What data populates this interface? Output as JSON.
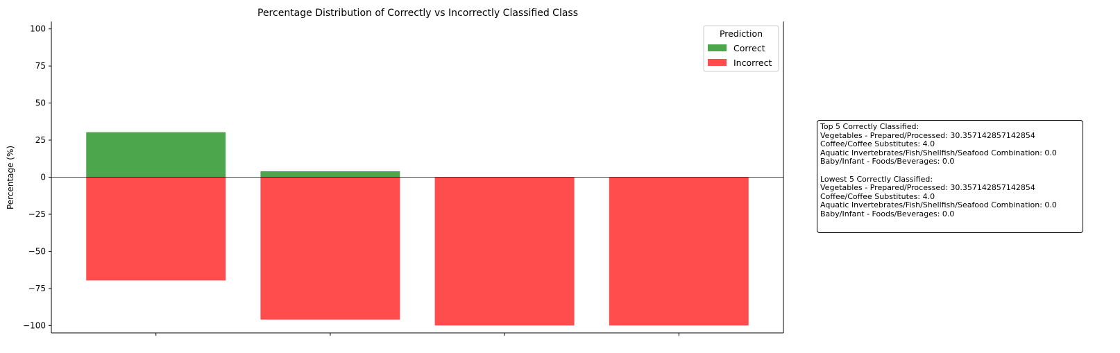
{
  "chart_data": {
    "type": "bar",
    "title": "Percentage Distribution of Correctly vs Incorrectly Classified Class",
    "xlabel": "",
    "ylabel": "Percentage (%)",
    "ylim": [
      -105,
      105
    ],
    "yticks": [
      100,
      75,
      50,
      25,
      0,
      -25,
      -50,
      -75,
      -100
    ],
    "ytick_labels": [
      "100",
      "75",
      "50",
      "25",
      "0",
      "−25",
      "−50",
      "−75",
      "−100"
    ],
    "x": [
      0,
      1,
      2,
      3
    ],
    "stacked": true,
    "series": [
      {
        "name": "Correct",
        "color": "#4ca64c",
        "values": [
          30.357142857142854,
          4.0,
          0.0,
          0.0
        ]
      },
      {
        "name": "Incorrect",
        "color": "#ff4c4c",
        "values": [
          -69.64285714285714,
          -96.0,
          -100.0,
          -100.0
        ]
      }
    ],
    "grid": false,
    "legend": {
      "title": "Prediction",
      "placement": "top-right"
    },
    "zero_line": true
  },
  "info_box": {
    "top_title": "Top 5 Correctly Classified:",
    "top_items": [
      "Vegetables - Prepared/Processed: 30.357142857142854",
      "Coffee/Coffee Substitutes: 4.0",
      "Aquatic Invertebrates/Fish/Shellfish/Seafood Combination: 0.0",
      "Baby/Infant - Foods/Beverages: 0.0"
    ],
    "lowest_title": "Lowest 5 Correctly Classified:",
    "lowest_items": [
      "Vegetables - Prepared/Processed: 30.357142857142854",
      "Coffee/Coffee Substitutes: 4.0",
      "Aquatic Invertebrates/Fish/Shellfish/Seafood Combination: 0.0",
      "Baby/Infant - Foods/Beverages: 0.0"
    ]
  }
}
